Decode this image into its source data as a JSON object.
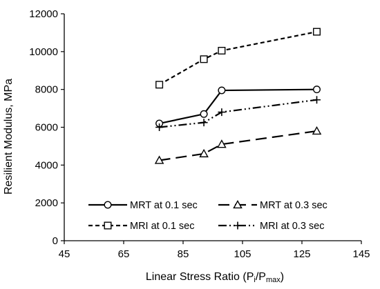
{
  "chart_data": {
    "type": "line",
    "xlabel": {
      "main": "Linear Stress Ratio (P",
      "sub1": "i",
      "mid": "/P",
      "sub2": "max",
      "end": ")"
    },
    "ylabel": "Resilient Modulus, MPa",
    "xlim": [
      45,
      145
    ],
    "ylim": [
      0,
      12000
    ],
    "xticks": [
      45,
      65,
      85,
      105,
      125,
      145
    ],
    "yticks": [
      0,
      2000,
      4000,
      6000,
      8000,
      10000,
      12000
    ],
    "grid": false,
    "legend_position": "bottom",
    "series": [
      {
        "name": "MRT at 0.1 sec",
        "marker": "circle",
        "dash": "solid",
        "x": [
          77,
          92,
          98,
          130
        ],
        "y": [
          6200,
          6700,
          7950,
          8000
        ]
      },
      {
        "name": "MRT at 0.3 sec",
        "marker": "triangle",
        "dash": "long-dash",
        "x": [
          77,
          92,
          98,
          130
        ],
        "y": [
          4250,
          4600,
          5100,
          5800
        ]
      },
      {
        "name": "MRI at 0.1 sec",
        "marker": "square",
        "dash": "short-dash",
        "x": [
          77,
          92,
          98,
          130
        ],
        "y": [
          8250,
          9600,
          10050,
          11050
        ]
      },
      {
        "name": "MRI at 0.3 sec",
        "marker": "plus",
        "dash": "dash-dot-dot",
        "x": [
          77,
          92,
          98,
          130
        ],
        "y": [
          6000,
          6250,
          6800,
          7450
        ]
      }
    ]
  }
}
